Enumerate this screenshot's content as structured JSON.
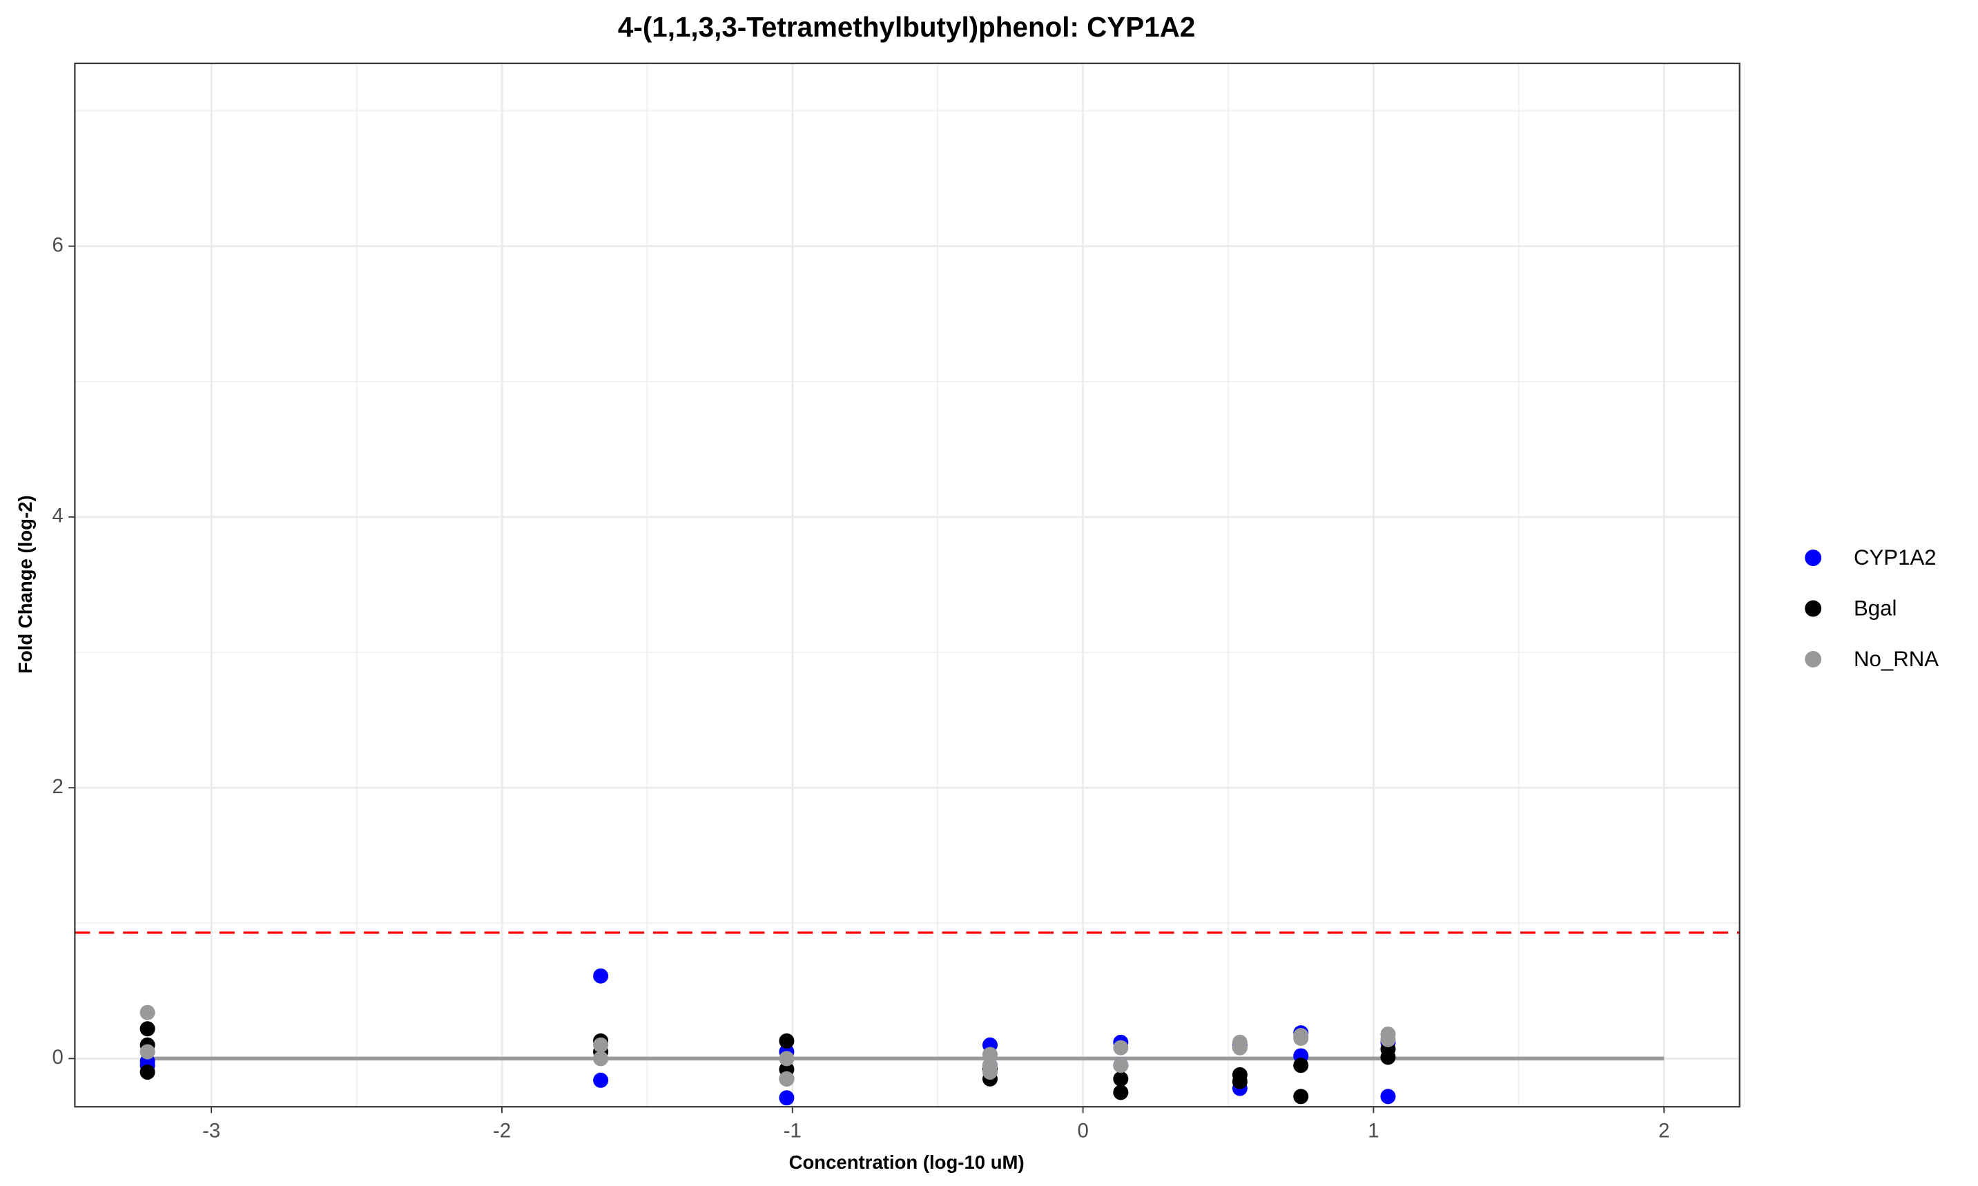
{
  "chart_data": {
    "type": "scatter",
    "title": "4-(1,1,3,3-Tetramethylbutyl)phenol: CYP1A2",
    "xlabel": "Concentration (log-10 uM)",
    "ylabel": "Fold Change (log-2)",
    "xlim": [
      -3.47,
      2.26
    ],
    "ylim": [
      -0.356,
      7.35
    ],
    "xticks": [
      -3,
      -2,
      -1,
      0,
      1,
      2
    ],
    "yticks": [
      0,
      2,
      4,
      6
    ],
    "grid": true,
    "legend": "right",
    "threshold": {
      "value": 0.93,
      "color": "#ff0000"
    },
    "fit_line": {
      "x": [
        -3.22,
        2
      ],
      "y": [
        0,
        0
      ],
      "color": "#999999"
    },
    "series": [
      {
        "name": "CYP1A2",
        "color": "#0000ff",
        "x": [
          -3.22,
          -3.22,
          -1.66,
          -1.66,
          -1.02,
          -1.02,
          -0.32,
          -0.32,
          0.13,
          0.13,
          0.54,
          0.54,
          0.75,
          0.75,
          1.05,
          1.05
        ],
        "values": [
          -0.05,
          -0.02,
          0.61,
          -0.16,
          -0.29,
          0.05,
          0.1,
          -0.05,
          0.12,
          -0.05,
          -0.22,
          0.1,
          0.19,
          0.02,
          -0.28,
          0.12
        ]
      },
      {
        "name": "Bgal",
        "color": "#000000",
        "x": [
          -3.22,
          -3.22,
          -3.22,
          -1.66,
          -1.66,
          -1.02,
          -1.02,
          -1.02,
          -0.32,
          -0.32,
          0.13,
          0.13,
          0.54,
          0.54,
          0.75,
          0.75,
          1.05,
          1.05
        ],
        "values": [
          0.22,
          0.1,
          -0.1,
          0.13,
          0.05,
          0.13,
          -0.08,
          -0.15,
          -0.15,
          -0.08,
          -0.25,
          -0.15,
          -0.12,
          -0.17,
          -0.28,
          -0.05,
          0.01,
          0.07
        ]
      },
      {
        "name": "No_RNA",
        "color": "#999999",
        "x": [
          -3.22,
          -3.22,
          -1.66,
          -1.66,
          -1.02,
          -1.02,
          -0.32,
          -0.32,
          -0.32,
          0.13,
          0.13,
          0.54,
          0.54,
          0.75,
          0.75,
          1.05,
          1.05
        ],
        "values": [
          0.34,
          0.05,
          0.1,
          0.0,
          -0.15,
          0.0,
          0.03,
          -0.05,
          -0.1,
          0.08,
          -0.05,
          0.12,
          0.08,
          0.17,
          0.15,
          0.18,
          0.14
        ]
      }
    ]
  }
}
